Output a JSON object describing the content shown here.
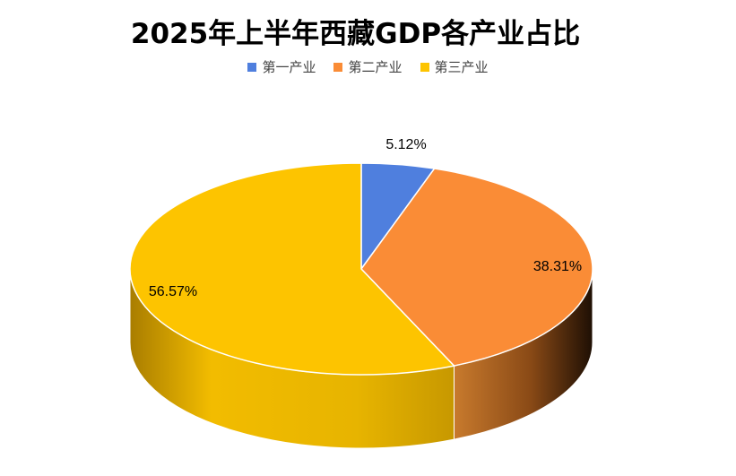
{
  "chart_data": {
    "type": "pie",
    "title": "2025年上半年西藏GDP各产业占比",
    "legend_position": "top",
    "slices": [
      {
        "name": "第一产业",
        "value": 5.12,
        "label": "5.12%",
        "color": "#4F7FDE"
      },
      {
        "name": "第二产业",
        "value": 38.31,
        "label": "38.31%",
        "color": "#FA8C36"
      },
      {
        "name": "第三产业",
        "value": 56.57,
        "label": "56.57%",
        "color": "#FDC400"
      }
    ]
  }
}
